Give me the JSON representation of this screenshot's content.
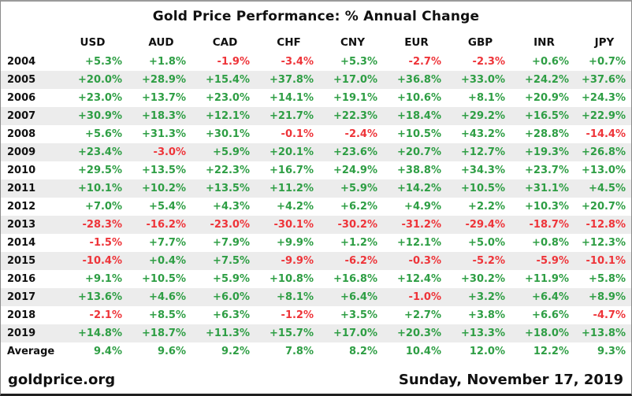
{
  "title": "Gold Price Performance: % Annual Change",
  "footer": {
    "site": "goldprice.org",
    "date": "Sunday, November 17, 2019"
  },
  "colors": {
    "positive": "#2e9e44",
    "negative": "#ee3439",
    "stripe": "#ececec"
  },
  "chart_data": {
    "type": "table",
    "title": "Gold Price Performance: % Annual Change",
    "columns": [
      "USD",
      "AUD",
      "CAD",
      "CHF",
      "CNY",
      "EUR",
      "GBP",
      "INR",
      "JPY"
    ],
    "rows": [
      {
        "label": "2004",
        "values": [
          "+5.3%",
          "+1.8%",
          "-1.9%",
          "-3.4%",
          "+5.3%",
          "-2.7%",
          "-2.3%",
          "+0.6%",
          "+0.7%"
        ]
      },
      {
        "label": "2005",
        "values": [
          "+20.0%",
          "+28.9%",
          "+15.4%",
          "+37.8%",
          "+17.0%",
          "+36.8%",
          "+33.0%",
          "+24.2%",
          "+37.6%"
        ]
      },
      {
        "label": "2006",
        "values": [
          "+23.0%",
          "+13.7%",
          "+23.0%",
          "+14.1%",
          "+19.1%",
          "+10.6%",
          "+8.1%",
          "+20.9%",
          "+24.3%"
        ]
      },
      {
        "label": "2007",
        "values": [
          "+30.9%",
          "+18.3%",
          "+12.1%",
          "+21.7%",
          "+22.3%",
          "+18.4%",
          "+29.2%",
          "+16.5%",
          "+22.9%"
        ]
      },
      {
        "label": "2008",
        "values": [
          "+5.6%",
          "+31.3%",
          "+30.1%",
          "-0.1%",
          "-2.4%",
          "+10.5%",
          "+43.2%",
          "+28.8%",
          "-14.4%"
        ]
      },
      {
        "label": "2009",
        "values": [
          "+23.4%",
          "-3.0%",
          "+5.9%",
          "+20.1%",
          "+23.6%",
          "+20.7%",
          "+12.7%",
          "+19.3%",
          "+26.8%"
        ]
      },
      {
        "label": "2010",
        "values": [
          "+29.5%",
          "+13.5%",
          "+22.3%",
          "+16.7%",
          "+24.9%",
          "+38.8%",
          "+34.3%",
          "+23.7%",
          "+13.0%"
        ]
      },
      {
        "label": "2011",
        "values": [
          "+10.1%",
          "+10.2%",
          "+13.5%",
          "+11.2%",
          "+5.9%",
          "+14.2%",
          "+10.5%",
          "+31.1%",
          "+4.5%"
        ]
      },
      {
        "label": "2012",
        "values": [
          "+7.0%",
          "+5.4%",
          "+4.3%",
          "+4.2%",
          "+6.2%",
          "+4.9%",
          "+2.2%",
          "+10.3%",
          "+20.7%"
        ]
      },
      {
        "label": "2013",
        "values": [
          "-28.3%",
          "-16.2%",
          "-23.0%",
          "-30.1%",
          "-30.2%",
          "-31.2%",
          "-29.4%",
          "-18.7%",
          "-12.8%"
        ]
      },
      {
        "label": "2014",
        "values": [
          "-1.5%",
          "+7.7%",
          "+7.9%",
          "+9.9%",
          "+1.2%",
          "+12.1%",
          "+5.0%",
          "+0.8%",
          "+12.3%"
        ]
      },
      {
        "label": "2015",
        "values": [
          "-10.4%",
          "+0.4%",
          "+7.5%",
          "-9.9%",
          "-6.2%",
          "-0.3%",
          "-5.2%",
          "-5.9%",
          "-10.1%"
        ]
      },
      {
        "label": "2016",
        "values": [
          "+9.1%",
          "+10.5%",
          "+5.9%",
          "+10.8%",
          "+16.8%",
          "+12.4%",
          "+30.2%",
          "+11.9%",
          "+5.8%"
        ]
      },
      {
        "label": "2017",
        "values": [
          "+13.6%",
          "+4.6%",
          "+6.0%",
          "+8.1%",
          "+6.4%",
          "-1.0%",
          "+3.2%",
          "+6.4%",
          "+8.9%"
        ]
      },
      {
        "label": "2018",
        "values": [
          "-2.1%",
          "+8.5%",
          "+6.3%",
          "-1.2%",
          "+3.5%",
          "+2.7%",
          "+3.8%",
          "+6.6%",
          "-4.7%"
        ]
      },
      {
        "label": "2019",
        "values": [
          "+14.8%",
          "+18.7%",
          "+11.3%",
          "+15.7%",
          "+17.0%",
          "+20.3%",
          "+13.3%",
          "+18.0%",
          "+13.8%"
        ]
      },
      {
        "label": "Average",
        "values": [
          "9.4%",
          "9.6%",
          "9.2%",
          "7.8%",
          "8.2%",
          "10.4%",
          "12.0%",
          "12.2%",
          "9.3%"
        ]
      }
    ]
  }
}
